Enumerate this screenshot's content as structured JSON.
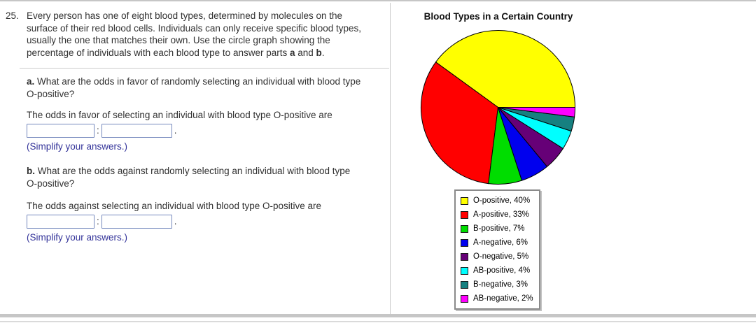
{
  "problem": {
    "number": "25.",
    "intro_lines": [
      "Every person has one of eight blood types, determined by molecules on the",
      "surface of their red blood cells. Individuals can only receive specific blood types,",
      "usually the one that matches their own. Use the circle graph showing the"
    ],
    "intro_last": {
      "pre": "percentage of individuals with each blood type to answer parts ",
      "a": "a",
      "mid": " and ",
      "b": "b",
      "end": "."
    },
    "part_a": {
      "label": "a.",
      "question_line1": " What are the odds in favor of randomly selecting an individual with blood type",
      "question_line2": "O-positive?",
      "answer_lead": "The odds in favor of selecting an individual with blood type O-positive are",
      "input1_value": "",
      "input2_value": "",
      "separator": ":",
      "terminator": ".",
      "note": "(Simplify your answers.)"
    },
    "part_b": {
      "label": "b.",
      "question_line1": " What are the odds against randomly selecting an individual with blood type",
      "question_line2": "O-positive?",
      "answer_lead": "The odds against selecting an individual with blood type O-positive are",
      "input1_value": "",
      "input2_value": "",
      "separator": ":",
      "terminator": ".",
      "note": "(Simplify your answers.)"
    }
  },
  "chart": {
    "title": "Blood Types in a Certain Country"
  },
  "chart_data": {
    "type": "pie",
    "title": "Blood Types in a Certain Country",
    "start_angle_deg": 0,
    "direction": "counterclockwise",
    "legend_position": "below-chart",
    "legend_label_format": "{label}, {value}%",
    "slices": [
      {
        "label": "O-positive",
        "value": 40,
        "color": "#ffff00"
      },
      {
        "label": "A-positive",
        "value": 33,
        "color": "#ff0000"
      },
      {
        "label": "B-positive",
        "value": 7,
        "color": "#00dd00"
      },
      {
        "label": "A-negative",
        "value": 6,
        "color": "#0000ee"
      },
      {
        "label": "O-negative",
        "value": 5,
        "color": "#660077"
      },
      {
        "label": "AB-positive",
        "value": 4,
        "color": "#00ffff"
      },
      {
        "label": "B-negative",
        "value": 3,
        "color": "#168080"
      },
      {
        "label": "AB-negative",
        "value": 2,
        "color": "#ff00ff"
      }
    ]
  },
  "colors": {
    "answer_box_border": "#7488bd",
    "hint_text": "#333399",
    "divider": "#cccccc",
    "frame_gray": "#c6c6c6",
    "legend_border": "#8a8a8a"
  }
}
